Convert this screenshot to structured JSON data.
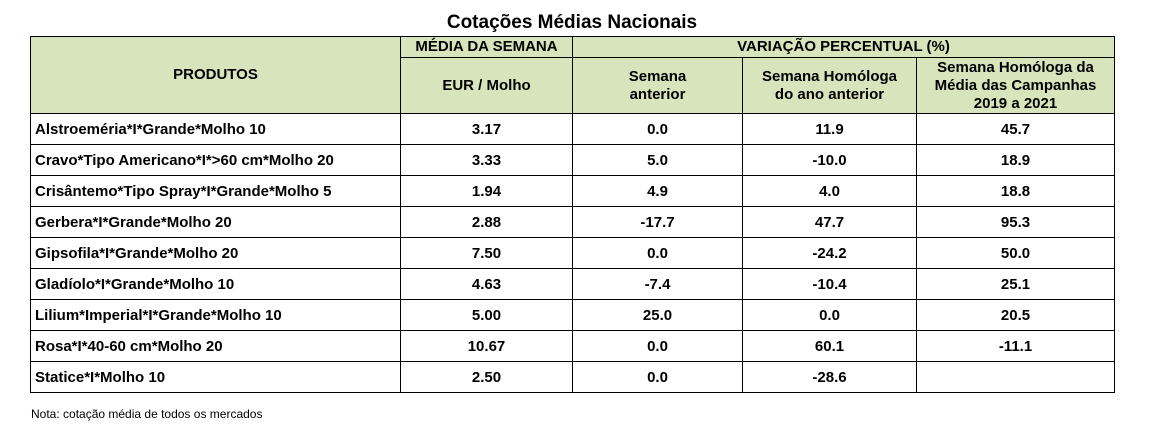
{
  "title": "Cotações Médias Nacionais",
  "header": {
    "produtos": "PRODUTOS",
    "media_semana": "MÉDIA DA SEMANA",
    "unit": "EUR / Molho",
    "variacao": "VARIAÇÃO PERCENTUAL (%)",
    "semana_anterior": [
      "Semana",
      "anterior"
    ],
    "homologa_ano_anterior": [
      "Semana Homóloga",
      "do ano anterior"
    ],
    "homologa_campanhas": [
      "Semana Homóloga da",
      "Média das Campanhas",
      "2019 a 2021"
    ]
  },
  "rows": [
    {
      "produto": "Alstroeméria*I*Grande*Molho 10",
      "media": "3.17",
      "sem_ant": "0.0",
      "hom_ano": "11.9",
      "hom_camp": "45.7"
    },
    {
      "produto": "Cravo*Tipo Americano*I*>60 cm*Molho 20",
      "media": "3.33",
      "sem_ant": "5.0",
      "hom_ano": "-10.0",
      "hom_camp": "18.9"
    },
    {
      "produto": "Crisântemo*Tipo Spray*I*Grande*Molho 5",
      "media": "1.94",
      "sem_ant": "4.9",
      "hom_ano": "4.0",
      "hom_camp": "18.8"
    },
    {
      "produto": "Gerbera*I*Grande*Molho 20",
      "media": "2.88",
      "sem_ant": "-17.7",
      "hom_ano": "47.7",
      "hom_camp": "95.3"
    },
    {
      "produto": "Gipsofila*I*Grande*Molho 20",
      "media": "7.50",
      "sem_ant": "0.0",
      "hom_ano": "-24.2",
      "hom_camp": "50.0"
    },
    {
      "produto": "Gladíolo*I*Grande*Molho 10",
      "media": "4.63",
      "sem_ant": "-7.4",
      "hom_ano": "-10.4",
      "hom_camp": "25.1"
    },
    {
      "produto": "Lilium*Imperial*I*Grande*Molho 10",
      "media": "5.00",
      "sem_ant": "25.0",
      "hom_ano": "0.0",
      "hom_camp": "20.5"
    },
    {
      "produto": "Rosa*I*40-60 cm*Molho 20",
      "media": "10.67",
      "sem_ant": "0.0",
      "hom_ano": "60.1",
      "hom_camp": "-11.1"
    },
    {
      "produto": "Statice*I*Molho 10",
      "media": "2.50",
      "sem_ant": "0.0",
      "hom_ano": "-28.6",
      "hom_camp": ""
    }
  ],
  "note": "Nota: cotação média de todos os mercados",
  "colors": {
    "header_bg": "#d8e4bc",
    "border": "#000000"
  }
}
